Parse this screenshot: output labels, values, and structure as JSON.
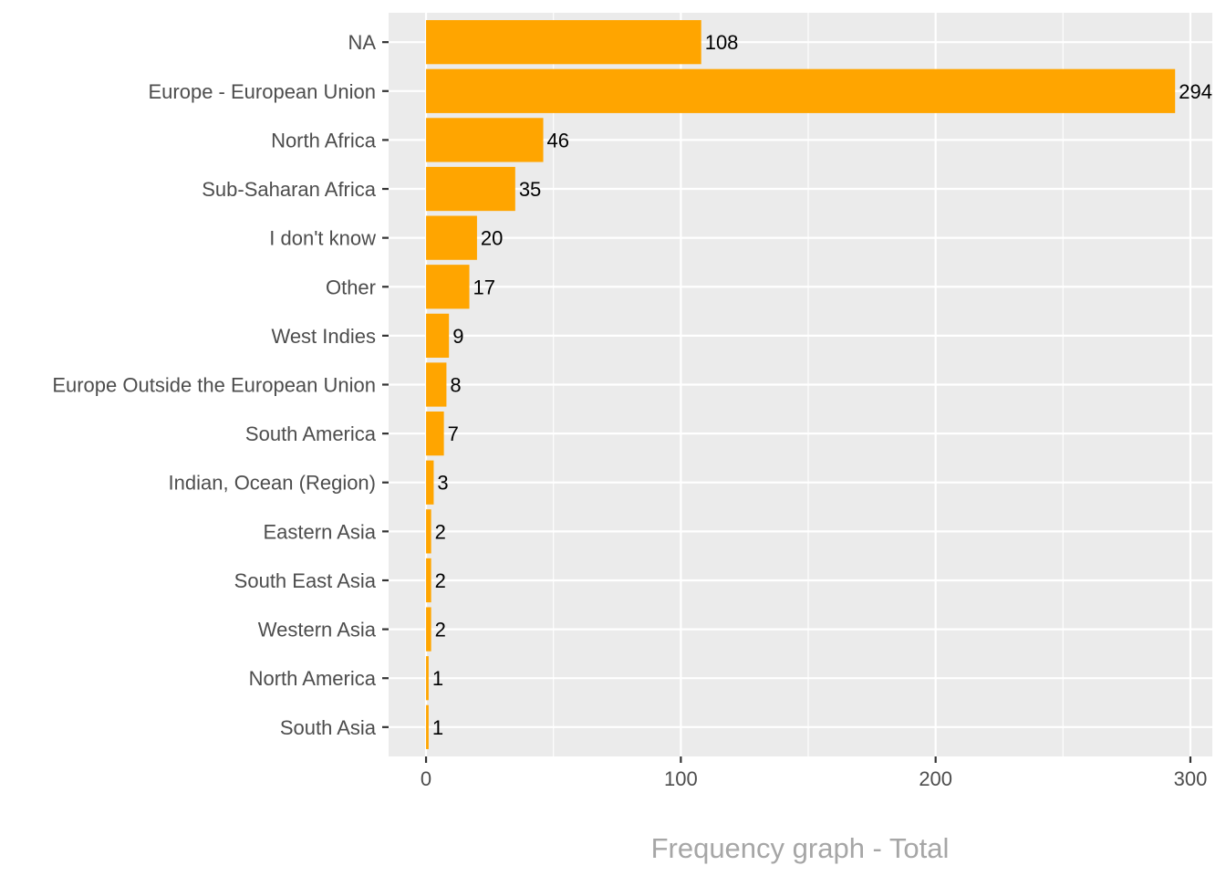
{
  "chart_data": {
    "type": "bar",
    "orientation": "horizontal",
    "categories": [
      "NA",
      "Europe - European Union",
      "North Africa",
      "Sub-Saharan Africa",
      "I don't know",
      "Other",
      "West Indies",
      "Europe Outside the European Union",
      "South America",
      "Indian, Ocean (Region)",
      "Eastern Asia",
      "South East Asia",
      "Western Asia",
      "North America",
      "South Asia"
    ],
    "values": [
      108,
      294,
      46,
      35,
      20,
      17,
      9,
      8,
      7,
      3,
      2,
      2,
      2,
      1,
      1
    ],
    "xlabel": "Frequency graph - Total",
    "ylabel": "",
    "xlim": [
      -14.7,
      308.6
    ],
    "xticks": [
      0,
      100,
      200,
      300
    ],
    "grid": true,
    "legend": "none",
    "colors": {
      "bar": "#FFA500",
      "panel": "#EBEBEB",
      "grid": "#FFFFFF"
    }
  }
}
